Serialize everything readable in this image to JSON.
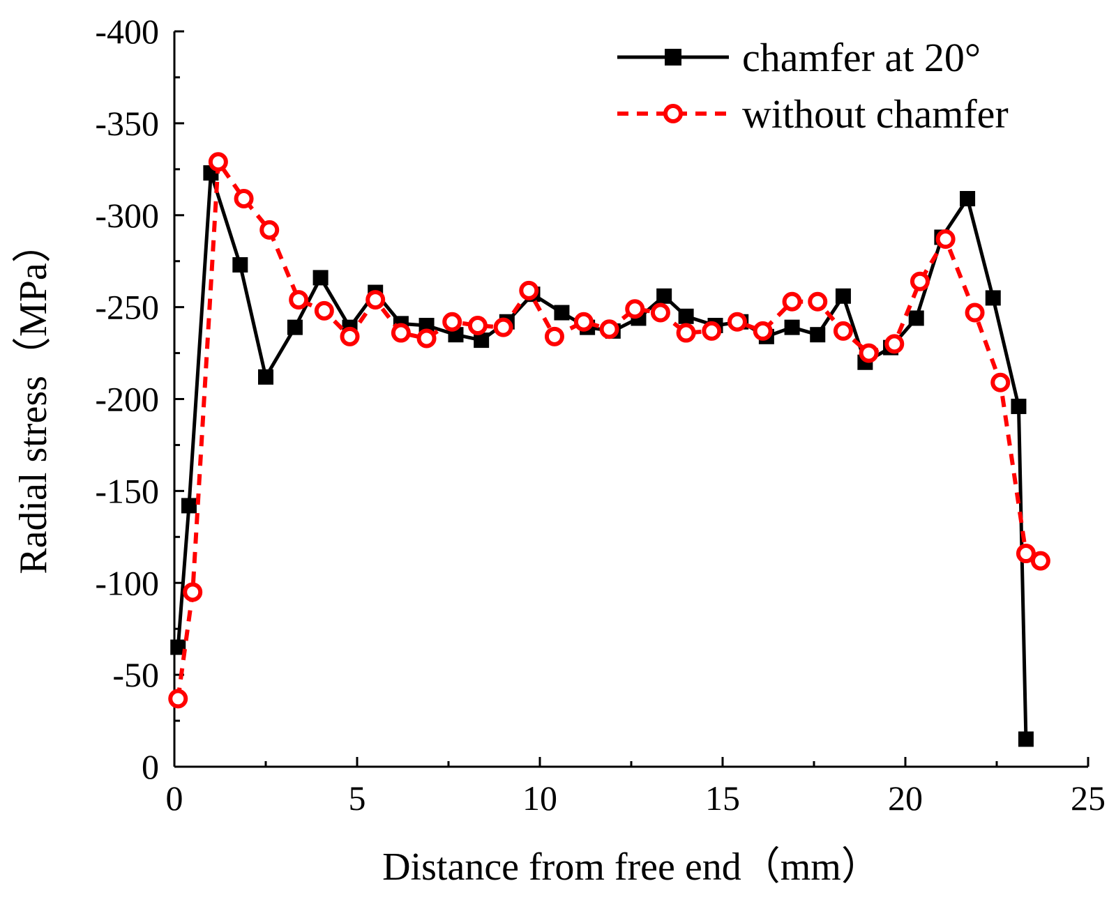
{
  "chart_data": {
    "type": "line",
    "title": "",
    "xlabel": "Distance from free end（mm）",
    "ylabel": "Radial stress（MPa）",
    "xlim": [
      0,
      25
    ],
    "ylim": [
      0,
      -400
    ],
    "y_inverted": true,
    "xticks": [
      0,
      5,
      10,
      15,
      20,
      25
    ],
    "xtick_labels": [
      "0",
      "5",
      "10",
      "15",
      "20",
      "25"
    ],
    "yticks": [
      0,
      -50,
      -100,
      -150,
      -200,
      -250,
      -300,
      -350,
      -400
    ],
    "ytick_labels": [
      "0",
      "-50",
      "-100",
      "-150",
      "-200",
      "-250",
      "-300",
      "-350",
      "-400"
    ],
    "grid": false,
    "legend_position": "top-right",
    "series": [
      {
        "name": "chamfer at 20°",
        "color": "#000000",
        "line_style": "solid",
        "marker": "filled-square",
        "x": [
          0.1,
          0.4,
          1.0,
          1.8,
          2.5,
          3.3,
          4.0,
          4.8,
          5.5,
          6.2,
          6.9,
          7.7,
          8.4,
          9.1,
          9.8,
          10.6,
          11.3,
          12.0,
          12.7,
          13.4,
          14.0,
          14.8,
          15.5,
          16.2,
          16.9,
          17.6,
          18.3,
          18.9,
          19.6,
          20.3,
          21.0,
          21.7,
          22.4,
          23.1,
          23.3
        ],
        "y": [
          -65,
          -142,
          -323,
          -273,
          -212,
          -239,
          -266,
          -239,
          -258,
          -241,
          -240,
          -235,
          -232,
          -242,
          -257,
          -247,
          -239,
          -237,
          -244,
          -256,
          -245,
          -240,
          -242,
          -234,
          -239,
          -235,
          -256,
          -220,
          -228,
          -244,
          -288,
          -309,
          -255,
          -196,
          -15
        ]
      },
      {
        "name": "without chamfer",
        "color": "#ff0000",
        "line_style": "dashed",
        "marker": "open-circle",
        "x": [
          0.1,
          0.5,
          1.2,
          1.9,
          2.6,
          3.4,
          4.1,
          4.8,
          5.5,
          6.2,
          6.9,
          7.6,
          8.3,
          9.0,
          9.7,
          10.4,
          11.2,
          11.9,
          12.6,
          13.3,
          14.0,
          14.7,
          15.4,
          16.1,
          16.9,
          17.6,
          18.3,
          19.0,
          19.7,
          20.4,
          21.1,
          21.9,
          22.6,
          23.3,
          23.7
        ],
        "y": [
          -37,
          -95,
          -329,
          -309,
          -292,
          -254,
          -248,
          -234,
          -254,
          -236,
          -233,
          -242,
          -240,
          -239,
          -259,
          -234,
          -242,
          -238,
          -249,
          -247,
          -236,
          -237,
          -242,
          -237,
          -253,
          -253,
          -237,
          -225,
          -230,
          -264,
          -287,
          -247,
          -209,
          -116,
          -112
        ]
      }
    ]
  }
}
